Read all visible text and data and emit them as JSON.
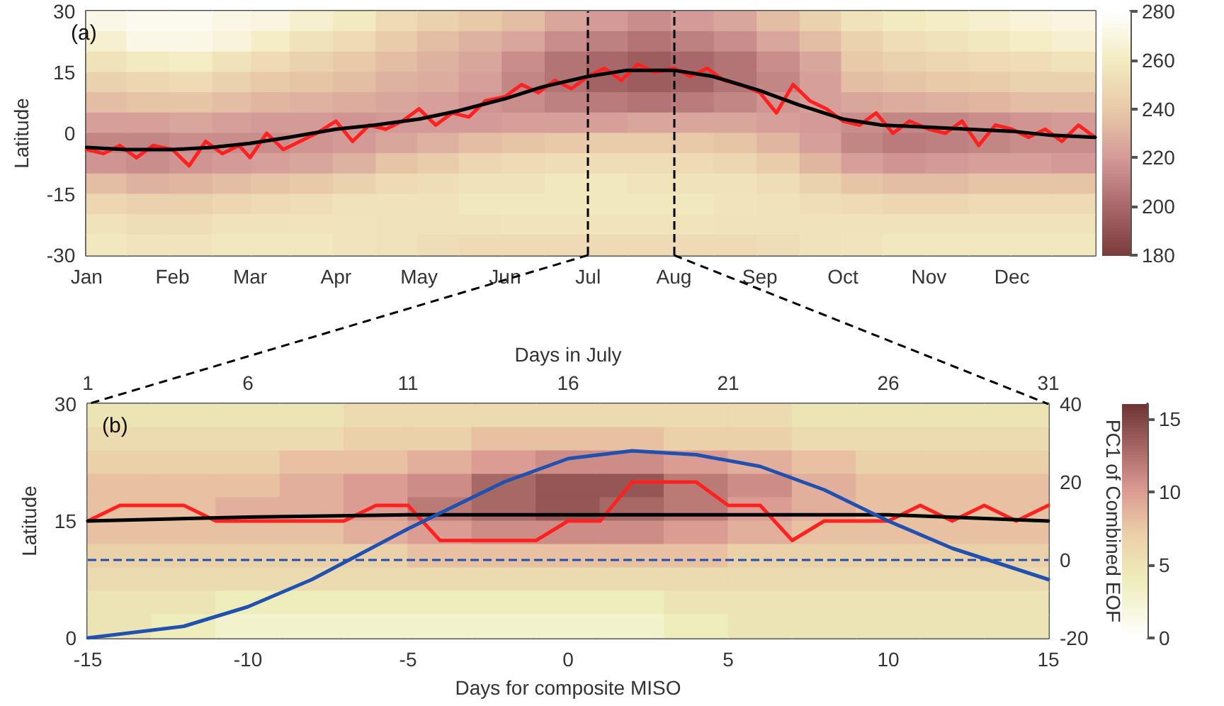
{
  "chart_data": [
    {
      "type": "heatmap",
      "annotations": [
        "(a)"
      ],
      "ylabel": "Latitude",
      "x": [
        "--01-08",
        "--01-23",
        "--02-08",
        "--02-23",
        "--03-08",
        "--03-23",
        "--04-08",
        "--04-23",
        "--05-08",
        "--05-23",
        "--06-08",
        "--06-23",
        "--07-08",
        "--07-23",
        "--08-08",
        "--08-23",
        "--09-08",
        "--09-23",
        "--10-08",
        "--10-23",
        "--11-08",
        "--11-23",
        "--12-08",
        "--12-23"
      ],
      "cells": [
        [
          272,
          275,
          275,
          272,
          270,
          265,
          260,
          250,
          245,
          240,
          235,
          225,
          220,
          215,
          220,
          225,
          235,
          245,
          255,
          260,
          262,
          265,
          268,
          270
        ],
        [
          265,
          272,
          272,
          268,
          262,
          255,
          250,
          242,
          235,
          230,
          225,
          215,
          210,
          205,
          210,
          215,
          225,
          235,
          245,
          252,
          255,
          258,
          262,
          265
        ],
        [
          255,
          260,
          262,
          255,
          250,
          245,
          240,
          235,
          230,
          225,
          215,
          205,
          200,
          195,
          200,
          205,
          215,
          225,
          240,
          245,
          248,
          250,
          252,
          255
        ],
        [
          245,
          248,
          250,
          245,
          240,
          238,
          235,
          230,
          228,
          222,
          212,
          205,
          198,
          195,
          198,
          205,
          212,
          222,
          235,
          238,
          240,
          242,
          245,
          245
        ],
        [
          235,
          238,
          238,
          235,
          232,
          230,
          228,
          225,
          222,
          218,
          215,
          210,
          208,
          205,
          208,
          212,
          218,
          222,
          225,
          228,
          230,
          232,
          235,
          235
        ],
        [
          222,
          222,
          225,
          222,
          220,
          220,
          218,
          220,
          220,
          220,
          222,
          222,
          222,
          225,
          225,
          225,
          222,
          220,
          215,
          212,
          212,
          215,
          218,
          220
        ],
        [
          212,
          212,
          215,
          215,
          215,
          218,
          220,
          225,
          230,
          235,
          238,
          240,
          242,
          242,
          240,
          238,
          232,
          222,
          212,
          208,
          210,
          212,
          215,
          215
        ],
        [
          218,
          215,
          218,
          220,
          222,
          225,
          230,
          238,
          242,
          248,
          250,
          252,
          252,
          252,
          250,
          248,
          242,
          232,
          222,
          218,
          220,
          222,
          222,
          220
        ],
        [
          235,
          230,
          232,
          235,
          238,
          240,
          245,
          250,
          252,
          255,
          255,
          258,
          258,
          256,
          255,
          255,
          252,
          245,
          238,
          235,
          235,
          238,
          238,
          238
        ],
        [
          248,
          245,
          245,
          248,
          250,
          252,
          255,
          255,
          255,
          258,
          258,
          258,
          258,
          258,
          258,
          256,
          255,
          252,
          250,
          248,
          248,
          250,
          250,
          250
        ],
        [
          255,
          252,
          252,
          255,
          255,
          256,
          256,
          255,
          255,
          255,
          256,
          256,
          256,
          256,
          256,
          255,
          255,
          255,
          255,
          255,
          255,
          255,
          255,
          255
        ],
        [
          258,
          256,
          256,
          258,
          258,
          258,
          256,
          255,
          252,
          250,
          250,
          250,
          250,
          250,
          250,
          250,
          252,
          255,
          256,
          258,
          258,
          258,
          258,
          258
        ]
      ],
      "clim": [
        180,
        280
      ],
      "cticks": [
        180,
        200,
        220,
        240,
        260,
        280
      ],
      "xlim": [
        "--01-01",
        "--12-31"
      ],
      "xticks": [
        {
          "value": "--01-01",
          "label": "Jan"
        },
        {
          "value": "--02-01",
          "label": "Feb"
        },
        {
          "value": "--03-01",
          "label": "Mar"
        },
        {
          "value": "--04-01",
          "label": "Apr"
        },
        {
          "value": "--05-01",
          "label": "May"
        },
        {
          "value": "--06-01",
          "label": "Jun"
        },
        {
          "value": "--07-01",
          "label": "Jul"
        },
        {
          "value": "--08-01",
          "label": "Aug"
        },
        {
          "value": "--09-01",
          "label": "Sep"
        },
        {
          "value": "--10-01",
          "label": "Oct"
        },
        {
          "value": "--11-01",
          "label": "Nov"
        },
        {
          "value": "--12-01",
          "label": "Dec"
        }
      ],
      "ylim": [
        -30,
        30
      ],
      "yticks": [
        -30,
        -15,
        0,
        15,
        30
      ],
      "series": [
        {
          "type": "line",
          "color": "#ff2020",
          "x": [
            "--01-01",
            "--01-07",
            "--01-13",
            "--01-19",
            "--01-25",
            "--02-01",
            "--02-07",
            "--02-13",
            "--02-19",
            "--02-25",
            "--03-01",
            "--03-07",
            "--03-13",
            "--03-19",
            "--03-25",
            "--04-01",
            "--04-07",
            "--04-13",
            "--04-19",
            "--04-25",
            "--05-01",
            "--05-07",
            "--05-13",
            "--05-19",
            "--05-25",
            "--06-01",
            "--06-07",
            "--06-13",
            "--06-19",
            "--06-25",
            "--07-01",
            "--07-07",
            "--07-13",
            "--07-19",
            "--07-25",
            "--08-01",
            "--08-07",
            "--08-13",
            "--08-19",
            "--08-25",
            "--09-01",
            "--09-07",
            "--09-13",
            "--09-19",
            "--09-25",
            "--10-01",
            "--10-07",
            "--10-13",
            "--10-19",
            "--10-25",
            "--11-01",
            "--11-07",
            "--11-13",
            "--11-19",
            "--11-25",
            "--12-01",
            "--12-07",
            "--12-13",
            "--12-19",
            "--12-25",
            "--12-31"
          ],
          "values": [
            -4,
            -5,
            -3,
            -6,
            -3,
            -4,
            -8,
            -2,
            -5,
            -3,
            -6,
            0,
            -4,
            -2,
            0,
            3,
            -2,
            2,
            1,
            3,
            6,
            2,
            5,
            4,
            8,
            9,
            12,
            10,
            13,
            11,
            14,
            16,
            13,
            17,
            15,
            16,
            14,
            16,
            13,
            12,
            10,
            5,
            12,
            8,
            6,
            3,
            2,
            5,
            0,
            3,
            1,
            0,
            3,
            -3,
            2,
            1,
            -1,
            1,
            -2,
            2,
            -1
          ]
        },
        {
          "type": "line",
          "color": "#000000",
          "x": [
            "--01-01",
            "--01-15",
            "--02-01",
            "--02-15",
            "--03-01",
            "--03-15",
            "--04-01",
            "--04-15",
            "--05-01",
            "--05-15",
            "--06-01",
            "--06-15",
            "--07-01",
            "--07-15",
            "--08-01",
            "--08-15",
            "--09-01",
            "--09-15",
            "--10-01",
            "--10-15",
            "--11-01",
            "--11-15",
            "--12-01",
            "--12-15",
            "--12-31"
          ],
          "values": [
            -3.5,
            -4,
            -4,
            -3.5,
            -2.5,
            -1,
            1,
            2,
            3.5,
            5.5,
            8.5,
            11.5,
            14,
            15.5,
            15.5,
            14,
            10.5,
            7,
            3.5,
            2,
            1.5,
            1,
            0.5,
            -0.5,
            -1
          ]
        }
      ],
      "ref_lines": [
        {
          "axis": "x",
          "value": "--07-01",
          "color": "#000000",
          "line_style": "dashed"
        },
        {
          "axis": "x",
          "value": "--08-01",
          "color": "#000000",
          "line_style": "dashed"
        }
      ]
    },
    {
      "type": "heatmap",
      "annotations": [
        "(b)"
      ],
      "ylabel": "Latitude",
      "xlabel": "Days for composite MISO",
      "x2label": "Days in July",
      "y2label": "PC1 of Combined EOF",
      "x": [
        -14,
        -12,
        -10,
        -8,
        -6,
        -4,
        -2,
        0,
        2,
        4,
        6,
        8,
        10,
        12,
        14
      ],
      "cells": [
        [
          5,
          5,
          5,
          5,
          6,
          6,
          6,
          6,
          6,
          6,
          6,
          5,
          5,
          5,
          5
        ],
        [
          6,
          6,
          6,
          6,
          7,
          7,
          8,
          8,
          8,
          7,
          7,
          6,
          6,
          6,
          6
        ],
        [
          7,
          7,
          7,
          8,
          8,
          9,
          10,
          11,
          11,
          10,
          9,
          8,
          7,
          7,
          7
        ],
        [
          8,
          8,
          8,
          9,
          10,
          11,
          13,
          14,
          14,
          12,
          11,
          9,
          8,
          8,
          8
        ],
        [
          8,
          8,
          9,
          9,
          10,
          12,
          13,
          14,
          13,
          12,
          10,
          9,
          8,
          8,
          8
        ],
        [
          8,
          8,
          8,
          8,
          9,
          10,
          11,
          11,
          11,
          10,
          9,
          8,
          8,
          8,
          8
        ],
        [
          7,
          7,
          7,
          7,
          7,
          8,
          8,
          8,
          8,
          8,
          7,
          7,
          7,
          7,
          7
        ],
        [
          6,
          6,
          6,
          6,
          6,
          6,
          6,
          6,
          6,
          6,
          6,
          6,
          6,
          6,
          6
        ],
        [
          5,
          5,
          4,
          4,
          4,
          4,
          4,
          4,
          4,
          5,
          5,
          5,
          5,
          5,
          5
        ],
        [
          5,
          4,
          3,
          3,
          3,
          3,
          3,
          3,
          3,
          4,
          5,
          5,
          5,
          5,
          5
        ]
      ],
      "clim": [
        0,
        16
      ],
      "cticks": [
        0,
        5,
        10,
        15
      ],
      "xlim": [
        -15,
        15
      ],
      "xticks": [
        -15,
        -10,
        -5,
        0,
        5,
        10,
        15
      ],
      "x2lim": [
        1,
        31
      ],
      "x2ticks": [
        1,
        6,
        11,
        16,
        21,
        26,
        31
      ],
      "ylim": [
        0,
        30
      ],
      "yticks": [
        0,
        15,
        30
      ],
      "y2lim": [
        -20,
        40
      ],
      "y2ticks": [
        -20,
        0,
        20,
        40
      ],
      "series": [
        {
          "type": "line",
          "color": "#ff2020",
          "x": [
            -15,
            -14,
            -12,
            -11,
            -7,
            -6,
            -5,
            -4,
            -1,
            0,
            1,
            2,
            4,
            5,
            6,
            7,
            8,
            10,
            11,
            12,
            13,
            14,
            15
          ],
          "values": [
            15,
            17,
            17,
            15,
            15,
            17,
            17,
            12.5,
            12.5,
            15,
            15,
            20,
            20,
            17,
            17,
            12.5,
            15,
            15,
            17,
            15,
            17,
            15,
            17
          ]
        },
        {
          "type": "line",
          "color": "#000000",
          "x": [
            -15,
            -10,
            -5,
            0,
            5,
            10,
            15
          ],
          "values": [
            15,
            15.5,
            15.8,
            15.8,
            15.8,
            15.8,
            15
          ]
        },
        {
          "type": "line",
          "color": "#2050b0",
          "axis": "y2",
          "x": [
            -15,
            -12,
            -10,
            -8,
            -5,
            -2,
            0,
            2,
            4,
            6,
            8,
            10,
            12,
            15
          ],
          "values": [
            -20,
            -17,
            -12,
            -5,
            8,
            20,
            26,
            28,
            27,
            24,
            18,
            10,
            3,
            -5
          ]
        }
      ],
      "ref_lines": [
        {
          "axis": "y2",
          "value": 0,
          "color": "#2050b0",
          "line_style": "dashed"
        }
      ]
    }
  ]
}
